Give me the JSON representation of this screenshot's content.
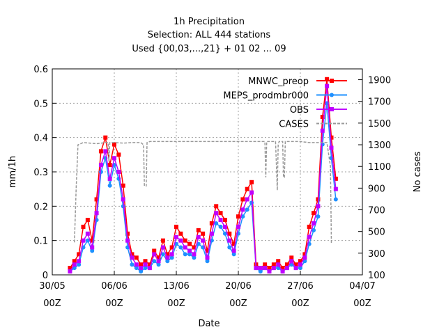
{
  "chart_data": {
    "type": "line",
    "title_lines": [
      "1h Precipitation",
      "Selection: ALL    444 stations",
      "Used {00,03,...,21} + 01 02 ... 09"
    ],
    "xlabel": "Date",
    "ylabel": "mm/1h",
    "y2label": "No cases",
    "xlim": [
      0,
      35
    ],
    "ylim": [
      0,
      0.6
    ],
    "y2lim": [
      100,
      2000
    ],
    "x_ticks": [
      {
        "x": 0,
        "line1": "30/05",
        "line2": "00Z"
      },
      {
        "x": 7,
        "line1": "06/06",
        "line2": "00Z"
      },
      {
        "x": 14,
        "line1": "13/06",
        "line2": "00Z"
      },
      {
        "x": 21,
        "line1": "20/06",
        "line2": "00Z"
      },
      {
        "x": 28,
        "line1": "27/06",
        "line2": "00Z"
      },
      {
        "x": 35,
        "line1": "04/07",
        "line2": "00Z"
      }
    ],
    "y_ticks": [
      "0",
      "0.1",
      "0.2",
      "0.3",
      "0.4",
      "0.5",
      "0.6"
    ],
    "y2_ticks": [
      "100",
      "300",
      "500",
      "700",
      "900",
      "1100",
      "1300",
      "1500",
      "1700",
      "1900"
    ],
    "grid": true,
    "legend_position": "top-right",
    "series": [
      {
        "name": "MNWC_preop",
        "color": "#ff0000",
        "marker": "square",
        "axis": "y",
        "x": [
          2.0,
          2.5,
          3.0,
          3.5,
          4.0,
          4.5,
          5.0,
          5.5,
          6.0,
          6.5,
          7.0,
          7.5,
          8.0,
          8.5,
          9.0,
          9.5,
          10.0,
          10.5,
          11.0,
          11.5,
          12.0,
          12.5,
          13.0,
          13.5,
          14.0,
          14.5,
          15.0,
          15.5,
          16.0,
          16.5,
          17.0,
          17.5,
          18.0,
          18.5,
          19.0,
          19.5,
          20.0,
          20.5,
          21.0,
          21.5,
          22.0,
          22.5,
          23.0,
          23.5,
          24.0,
          24.5,
          25.0,
          25.5,
          26.0,
          26.5,
          27.0,
          27.5,
          28.0,
          28.5,
          29.0,
          29.5,
          30.0,
          30.5,
          31.0,
          31.5,
          32.0
        ],
        "y": [
          0.02,
          0.04,
          0.06,
          0.14,
          0.16,
          0.1,
          0.22,
          0.36,
          0.4,
          0.32,
          0.38,
          0.35,
          0.26,
          0.12,
          0.06,
          0.05,
          0.03,
          0.04,
          0.03,
          0.07,
          0.05,
          0.1,
          0.06,
          0.08,
          0.14,
          0.12,
          0.1,
          0.09,
          0.08,
          0.13,
          0.12,
          0.07,
          0.15,
          0.2,
          0.18,
          0.16,
          0.12,
          0.09,
          0.17,
          0.22,
          0.25,
          0.27,
          0.03,
          0.02,
          0.03,
          0.02,
          0.03,
          0.04,
          0.02,
          0.03,
          0.05,
          0.03,
          0.04,
          0.06,
          0.14,
          0.18,
          0.22,
          0.46,
          0.57,
          0.4,
          0.28
        ]
      },
      {
        "name": "MEPS_prodmbr000",
        "color": "#1e90ff",
        "marker": "circle",
        "axis": "y",
        "x": [
          2.0,
          2.5,
          3.0,
          3.5,
          4.0,
          4.5,
          5.0,
          5.5,
          6.0,
          6.5,
          7.0,
          7.5,
          8.0,
          8.5,
          9.0,
          9.5,
          10.0,
          10.5,
          11.0,
          11.5,
          12.0,
          12.5,
          13.0,
          13.5,
          14.0,
          14.5,
          15.0,
          15.5,
          16.0,
          16.5,
          17.0,
          17.5,
          18.0,
          18.5,
          19.0,
          19.5,
          20.0,
          20.5,
          21.0,
          21.5,
          22.0,
          22.5,
          23.0,
          23.5,
          24.0,
          24.5,
          25.0,
          25.5,
          26.0,
          26.5,
          27.0,
          27.5,
          28.0,
          28.5,
          29.0,
          29.5,
          30.0,
          30.5,
          31.0,
          31.5,
          32.0
        ],
        "y": [
          0.01,
          0.02,
          0.03,
          0.08,
          0.1,
          0.07,
          0.16,
          0.3,
          0.34,
          0.26,
          0.32,
          0.28,
          0.2,
          0.08,
          0.03,
          0.02,
          0.01,
          0.02,
          0.02,
          0.04,
          0.03,
          0.06,
          0.04,
          0.05,
          0.09,
          0.08,
          0.06,
          0.06,
          0.05,
          0.09,
          0.08,
          0.04,
          0.1,
          0.15,
          0.14,
          0.12,
          0.08,
          0.06,
          0.12,
          0.17,
          0.19,
          0.21,
          0.02,
          0.01,
          0.02,
          0.01,
          0.02,
          0.02,
          0.01,
          0.02,
          0.03,
          0.02,
          0.02,
          0.04,
          0.09,
          0.13,
          0.17,
          0.38,
          0.5,
          0.34,
          0.22
        ]
      },
      {
        "name": "OBS",
        "color": "#c000ff",
        "marker": "square",
        "axis": "y",
        "x": [
          2.0,
          2.5,
          3.0,
          3.5,
          4.0,
          4.5,
          5.0,
          5.5,
          6.0,
          6.5,
          7.0,
          7.5,
          8.0,
          8.5,
          9.0,
          9.5,
          10.0,
          10.5,
          11.0,
          11.5,
          12.0,
          12.5,
          13.0,
          13.5,
          14.0,
          14.5,
          15.0,
          15.5,
          16.0,
          16.5,
          17.0,
          17.5,
          18.0,
          18.5,
          19.0,
          19.5,
          20.0,
          20.5,
          21.0,
          21.5,
          22.0,
          22.5,
          23.0,
          23.5,
          24.0,
          24.5,
          25.0,
          25.5,
          26.0,
          26.5,
          27.0,
          27.5,
          28.0,
          28.5,
          29.0,
          29.5,
          30.0,
          30.5,
          31.0,
          31.5,
          32.0
        ],
        "y": [
          0.01,
          0.03,
          0.04,
          0.1,
          0.12,
          0.08,
          0.18,
          0.32,
          0.36,
          0.28,
          0.34,
          0.3,
          0.22,
          0.1,
          0.05,
          0.03,
          0.02,
          0.03,
          0.02,
          0.06,
          0.04,
          0.08,
          0.05,
          0.06,
          0.11,
          0.1,
          0.08,
          0.07,
          0.06,
          0.11,
          0.1,
          0.05,
          0.12,
          0.18,
          0.16,
          0.14,
          0.1,
          0.07,
          0.14,
          0.19,
          0.22,
          0.24,
          0.02,
          0.02,
          0.02,
          0.01,
          0.02,
          0.03,
          0.01,
          0.02,
          0.04,
          0.02,
          0.03,
          0.05,
          0.11,
          0.15,
          0.2,
          0.42,
          0.55,
          0.37,
          0.25
        ]
      },
      {
        "name": "CASES",
        "color": "#999999",
        "marker": "none",
        "dashed": true,
        "axis": "y2",
        "x": [
          2.5,
          2.7,
          2.9,
          3.5,
          5.0,
          6.0,
          6.3,
          6.4,
          6.5,
          7.0,
          8.0,
          9.0,
          10.0,
          10.3,
          10.4,
          10.6,
          10.7,
          11.0,
          12.0,
          14.0,
          16.0,
          18.0,
          20.0,
          22.0,
          24.0,
          24.1,
          24.2,
          24.3,
          24.5,
          25.0,
          25.2,
          25.3,
          25.4,
          25.5,
          25.6,
          25.7,
          25.8,
          26.0,
          26.1,
          26.2,
          26.3,
          26.5,
          27.0,
          28.0,
          29.0,
          30.0,
          31.0,
          31.4,
          31.5,
          31.6
        ],
        "y": [
          400,
          900,
          1300,
          1320,
          1310,
          1320,
          1320,
          1150,
          1320,
          1320,
          1315,
          1320,
          1320,
          1300,
          920,
          920,
          1320,
          1330,
          1330,
          1330,
          1330,
          1330,
          1330,
          1330,
          1330,
          1000,
          1330,
          1330,
          1330,
          1330,
          1330,
          1100,
          880,
          1300,
          1330,
          1330,
          1330,
          1330,
          1000,
          1000,
          1330,
          1330,
          1330,
          1330,
          1320,
          1320,
          1320,
          1100,
          400,
          400
        ]
      }
    ]
  }
}
